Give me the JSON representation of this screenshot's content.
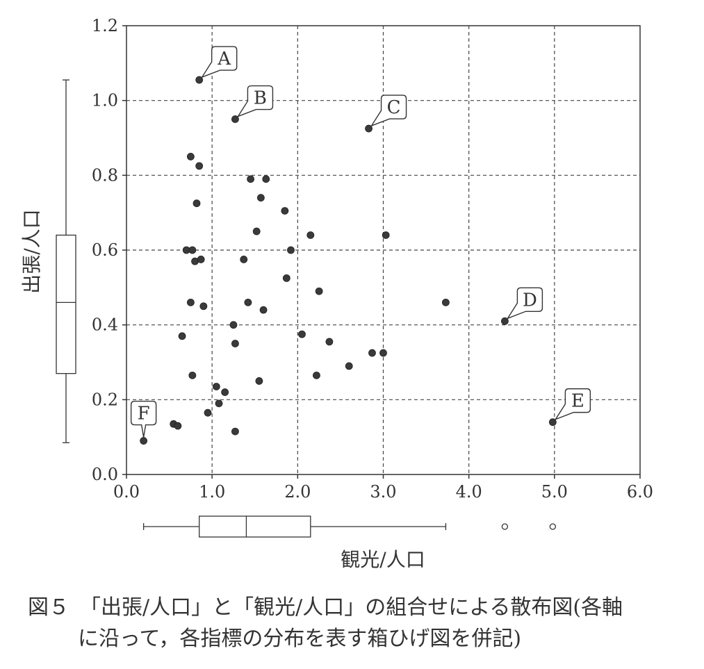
{
  "chart_data": {
    "type": "scatter",
    "xlabel": "観光/人口",
    "ylabel": "出張/人口",
    "xlim": [
      0,
      6
    ],
    "ylim": [
      0,
      1.2
    ],
    "x_ticks": [
      "0.0",
      "1.0",
      "2.0",
      "3.0",
      "4.0",
      "5.0",
      "6.0"
    ],
    "y_ticks": [
      "0.0",
      "0.2",
      "0.4",
      "0.6",
      "0.8",
      "1.0",
      "1.2"
    ],
    "grid": true,
    "points": [
      {
        "x": 0.85,
        "y": 1.055,
        "label": "A"
      },
      {
        "x": 1.27,
        "y": 0.95,
        "label": "B"
      },
      {
        "x": 2.83,
        "y": 0.925,
        "label": "C"
      },
      {
        "x": 0.75,
        "y": 0.85
      },
      {
        "x": 0.85,
        "y": 0.825
      },
      {
        "x": 1.45,
        "y": 0.79
      },
      {
        "x": 1.63,
        "y": 0.79
      },
      {
        "x": 1.57,
        "y": 0.74
      },
      {
        "x": 0.82,
        "y": 0.725
      },
      {
        "x": 1.85,
        "y": 0.705
      },
      {
        "x": 1.52,
        "y": 0.65
      },
      {
        "x": 2.15,
        "y": 0.64
      },
      {
        "x": 3.03,
        "y": 0.64
      },
      {
        "x": 0.7,
        "y": 0.6
      },
      {
        "x": 0.77,
        "y": 0.6
      },
      {
        "x": 1.92,
        "y": 0.6
      },
      {
        "x": 0.8,
        "y": 0.57
      },
      {
        "x": 0.87,
        "y": 0.575
      },
      {
        "x": 1.37,
        "y": 0.575
      },
      {
        "x": 1.87,
        "y": 0.525
      },
      {
        "x": 2.25,
        "y": 0.49
      },
      {
        "x": 0.75,
        "y": 0.46
      },
      {
        "x": 0.9,
        "y": 0.45
      },
      {
        "x": 1.42,
        "y": 0.46
      },
      {
        "x": 1.6,
        "y": 0.44
      },
      {
        "x": 3.73,
        "y": 0.46
      },
      {
        "x": 4.42,
        "y": 0.41,
        "label": "D"
      },
      {
        "x": 1.25,
        "y": 0.4
      },
      {
        "x": 0.65,
        "y": 0.37
      },
      {
        "x": 2.05,
        "y": 0.375
      },
      {
        "x": 1.27,
        "y": 0.35
      },
      {
        "x": 2.37,
        "y": 0.355
      },
      {
        "x": 2.87,
        "y": 0.325
      },
      {
        "x": 3.0,
        "y": 0.325
      },
      {
        "x": 2.6,
        "y": 0.29
      },
      {
        "x": 0.77,
        "y": 0.265
      },
      {
        "x": 2.22,
        "y": 0.265
      },
      {
        "x": 1.55,
        "y": 0.25
      },
      {
        "x": 1.05,
        "y": 0.235
      },
      {
        "x": 1.15,
        "y": 0.22
      },
      {
        "x": 1.08,
        "y": 0.19
      },
      {
        "x": 0.95,
        "y": 0.165
      },
      {
        "x": 4.98,
        "y": 0.14,
        "label": "E"
      },
      {
        "x": 0.55,
        "y": 0.135
      },
      {
        "x": 0.6,
        "y": 0.13
      },
      {
        "x": 1.27,
        "y": 0.115
      },
      {
        "x": 0.2,
        "y": 0.09,
        "label": "F"
      }
    ],
    "boxplot_y": {
      "whisker_low": 0.085,
      "q1": 0.27,
      "median": 0.46,
      "q3": 0.64,
      "whisker_high": 1.055
    },
    "boxplot_x": {
      "whisker_low": 0.2,
      "q1": 0.85,
      "median": 1.4,
      "q3": 2.15,
      "whisker_high": 3.73,
      "outliers": [
        4.42,
        4.98
      ]
    }
  },
  "caption": {
    "line1": "図５　「出張/人口」と「観光/人口」の組合せによる散布図(各軸",
    "line2": "に沿って，各指標の分布を表す箱ひげ図を併記)"
  }
}
